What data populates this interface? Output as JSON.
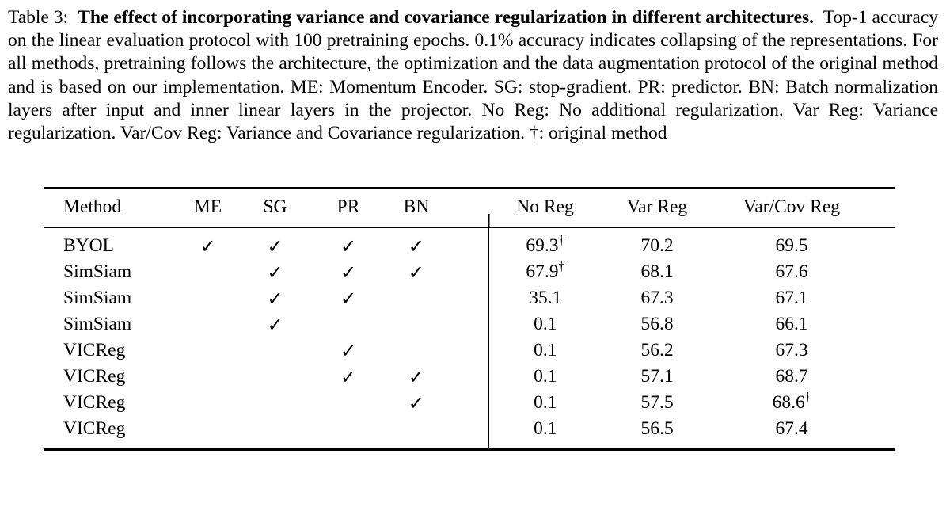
{
  "caption": {
    "label": "Table 3:",
    "bold": "The effect of incorporating variance and covariance regularization in different architectures.",
    "body": "Top-1 accuracy on the linear evaluation protocol with 100 pretraining epochs. 0.1% accuracy indicates collapsing of the representations. For all methods, pretraining follows the architecture, the optimization and the data augmentation protocol of the original method and is based on our implementation. ME: Momentum Encoder. SG: stop-gradient. PR: predictor. BN: Batch normalization layers after input and inner linear layers in the projector. No Reg: No additional regularization. Var Reg: Variance regularization. Var/Cov Reg: Variance and Covariance regularization. †: original method"
  },
  "table": {
    "checkmark_glyph": "✓",
    "dagger_glyph": "†",
    "columns": [
      "Method",
      "ME",
      "SG",
      "PR",
      "BN",
      "No Reg",
      "Var Reg",
      "Var/Cov Reg"
    ],
    "rows": [
      {
        "method": "BYOL",
        "me": true,
        "sg": true,
        "pr": true,
        "bn": true,
        "no_reg": {
          "v": "69.3",
          "d": true
        },
        "var_reg": {
          "v": "70.2",
          "d": false
        },
        "var_cov": {
          "v": "69.5",
          "d": false
        }
      },
      {
        "method": "SimSiam",
        "me": false,
        "sg": true,
        "pr": true,
        "bn": true,
        "no_reg": {
          "v": "67.9",
          "d": true
        },
        "var_reg": {
          "v": "68.1",
          "d": false
        },
        "var_cov": {
          "v": "67.6",
          "d": false
        }
      },
      {
        "method": "SimSiam",
        "me": false,
        "sg": true,
        "pr": true,
        "bn": false,
        "no_reg": {
          "v": "35.1",
          "d": false
        },
        "var_reg": {
          "v": "67.3",
          "d": false
        },
        "var_cov": {
          "v": "67.1",
          "d": false
        }
      },
      {
        "method": "SimSiam",
        "me": false,
        "sg": true,
        "pr": false,
        "bn": false,
        "no_reg": {
          "v": "0.1",
          "d": false
        },
        "var_reg": {
          "v": "56.8",
          "d": false
        },
        "var_cov": {
          "v": "66.1",
          "d": false
        }
      },
      {
        "method": "VICReg",
        "me": false,
        "sg": false,
        "pr": true,
        "bn": false,
        "no_reg": {
          "v": "0.1",
          "d": false
        },
        "var_reg": {
          "v": "56.2",
          "d": false
        },
        "var_cov": {
          "v": "67.3",
          "d": false
        }
      },
      {
        "method": "VICReg",
        "me": false,
        "sg": false,
        "pr": true,
        "bn": true,
        "no_reg": {
          "v": "0.1",
          "d": false
        },
        "var_reg": {
          "v": "57.1",
          "d": false
        },
        "var_cov": {
          "v": "68.7",
          "d": false
        }
      },
      {
        "method": "VICReg",
        "me": false,
        "sg": false,
        "pr": false,
        "bn": true,
        "no_reg": {
          "v": "0.1",
          "d": false
        },
        "var_reg": {
          "v": "57.5",
          "d": false
        },
        "var_cov": {
          "v": "68.6",
          "d": true
        }
      },
      {
        "method": "VICReg",
        "me": false,
        "sg": false,
        "pr": false,
        "bn": false,
        "no_reg": {
          "v": "0.1",
          "d": false
        },
        "var_reg": {
          "v": "56.5",
          "d": false
        },
        "var_cov": {
          "v": "67.4",
          "d": false
        }
      }
    ]
  }
}
